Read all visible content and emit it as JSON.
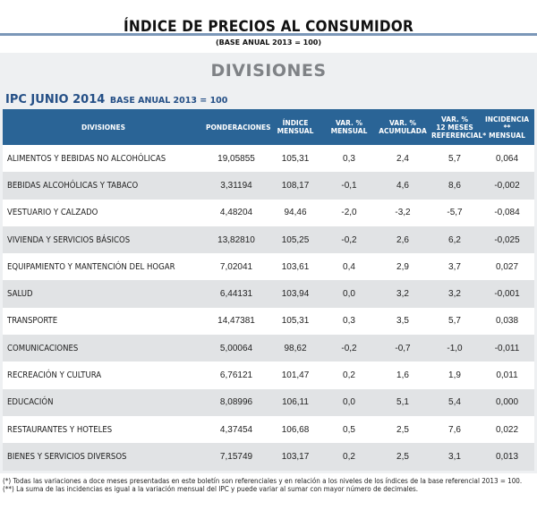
{
  "header": {
    "title": "ÍNDICE DE PRECIOS AL CONSUMIDOR",
    "subtitle": "(BASE ANUAL 2013 = 100)"
  },
  "section": {
    "title": "DIVISIONES",
    "table_title_main": "IPC JUNIO 2014",
    "table_title_sub": "BASE ANUAL 2013 = 100"
  },
  "table": {
    "headers": {
      "division": "DIVISIONES",
      "ponderaciones": "PONDERACIONES",
      "indice_1": "ÍNDICE",
      "indice_2": "MENSUAL",
      "var_mensual_1": "VAR. %",
      "var_mensual_2": "MENSUAL",
      "var_acumulada_1": "VAR. %",
      "var_acumulada_2": "ACUMULADA",
      "var_12_1": "VAR. %",
      "var_12_2": "12 MESES",
      "var_12_3": "REFERENCIAL*",
      "incidencia_1": "INCIDENCIA **",
      "incidencia_2": "MENSUAL"
    },
    "rows": [
      {
        "division": "ALIMENTOS Y BEBIDAS NO ALCOHÓLICAS",
        "ponderacion": "19,05855",
        "indice": "105,31",
        "var_mensual": "0,3",
        "var_acumulada": "2,4",
        "var_12": "5,7",
        "incidencia": "0,064"
      },
      {
        "division": "BEBIDAS ALCOHÓLICAS Y TABACO",
        "ponderacion": "3,31194",
        "indice": "108,17",
        "var_mensual": "-0,1",
        "var_acumulada": "4,6",
        "var_12": "8,6",
        "incidencia": "-0,002"
      },
      {
        "division": "VESTUARIO Y CALZADO",
        "ponderacion": "4,48204",
        "indice": "94,46",
        "var_mensual": "-2,0",
        "var_acumulada": "-3,2",
        "var_12": "-5,7",
        "incidencia": "-0,084"
      },
      {
        "division": "VIVIENDA Y SERVICIOS BÁSICOS",
        "ponderacion": "13,82810",
        "indice": "105,25",
        "var_mensual": "-0,2",
        "var_acumulada": "2,6",
        "var_12": "6,2",
        "incidencia": "-0,025"
      },
      {
        "division": "EQUIPAMIENTO Y MANTENCIÓN DEL HOGAR",
        "ponderacion": "7,02041",
        "indice": "103,61",
        "var_mensual": "0,4",
        "var_acumulada": "2,9",
        "var_12": "3,7",
        "incidencia": "0,027"
      },
      {
        "division": "SALUD",
        "ponderacion": "6,44131",
        "indice": "103,94",
        "var_mensual": "0,0",
        "var_acumulada": "3,2",
        "var_12": "3,2",
        "incidencia": "-0,001"
      },
      {
        "division": "TRANSPORTE",
        "ponderacion": "14,47381",
        "indice": "105,31",
        "var_mensual": "0,3",
        "var_acumulada": "3,5",
        "var_12": "5,7",
        "incidencia": "0,038"
      },
      {
        "division": "COMUNICACIONES",
        "ponderacion": "5,00064",
        "indice": "98,62",
        "var_mensual": "-0,2",
        "var_acumulada": "-0,7",
        "var_12": "-1,0",
        "incidencia": "-0,011"
      },
      {
        "division": "RECREACIÓN Y CULTURA",
        "ponderacion": "6,76121",
        "indice": "101,47",
        "var_mensual": "0,2",
        "var_acumulada": "1,6",
        "var_12": "1,9",
        "incidencia": "0,011"
      },
      {
        "division": "EDUCACIÓN",
        "ponderacion": "8,08996",
        "indice": "106,11",
        "var_mensual": "0,0",
        "var_acumulada": "5,1",
        "var_12": "5,4",
        "incidencia": "0,000"
      },
      {
        "division": "RESTAURANTES Y HOTELES",
        "ponderacion": "4,37454",
        "indice": "106,68",
        "var_mensual": "0,5",
        "var_acumulada": "2,5",
        "var_12": "7,6",
        "incidencia": "0,022"
      },
      {
        "division": "BIENES Y SERVICIOS DIVERSOS",
        "ponderacion": "7,15749",
        "indice": "103,17",
        "var_mensual": "0,2",
        "var_acumulada": "2,5",
        "var_12": "3,1",
        "incidencia": "0,013"
      }
    ]
  },
  "footnotes": [
    "(*) Todas las variaciones a doce meses presentadas en este boletín son referenciales y en relación a los niveles de los índices de la base referencial 2013 = 100.",
    "(**) La suma de las incidencias es igual a la variación mensual del IPC y puede variar al sumar con mayor número de decimales."
  ],
  "colors": {
    "header_bar": "#7b97b8",
    "table_header_bg": "#2a6496",
    "table_title": "#244f86",
    "section_title": "#7f8286",
    "panel_bg": "#eef0f2",
    "row_alt": "#e1e3e5"
  }
}
